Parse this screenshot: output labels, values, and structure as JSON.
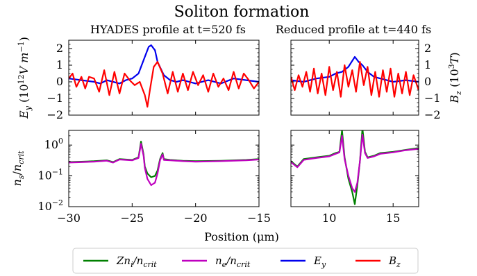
{
  "figure": {
    "title": "Soliton formation",
    "xlabel": "Position (μm)"
  },
  "colors": {
    "Zn_i": "#008000",
    "n_e": "#bf00bf",
    "E_y": "#0000ee",
    "B_z": "#ff0000"
  },
  "chart_data": [
    {
      "id": "top-left",
      "type": "line",
      "title": "HYADES profile at t=520 fs",
      "ylabel": "E_y (10^12 V m^-1)",
      "xlim": [
        -30,
        -15
      ],
      "ylim": [
        -2,
        2.5
      ],
      "yticks": [
        -2,
        -1,
        0,
        1,
        2
      ],
      "series": [
        {
          "name": "E_y",
          "x": [
            -30,
            -29,
            -28,
            -27.5,
            -27,
            -26.5,
            -26,
            -25.5,
            -25,
            -24.5,
            -24,
            -23.7,
            -23.5,
            -23.2,
            -23,
            -22.5,
            -22,
            -21.5,
            -21,
            -20,
            -19,
            -18,
            -17,
            -16,
            -15
          ],
          "y": [
            0.2,
            0.1,
            0.0,
            -0.1,
            0.1,
            0.0,
            -0.1,
            0.1,
            0.2,
            0.5,
            1.5,
            2.1,
            2.2,
            1.9,
            1.2,
            0.4,
            0.1,
            0.0,
            0.1,
            -0.1,
            0.1,
            -0.1,
            0.2,
            0.1,
            0.0
          ]
        },
        {
          "name": "B_z",
          "x": [
            -30,
            -29.7,
            -29.4,
            -29,
            -28.7,
            -28.4,
            -28,
            -27.6,
            -27.2,
            -26.8,
            -26.4,
            -26,
            -25.6,
            -25.2,
            -24.8,
            -24.4,
            -24,
            -23.8,
            -23.6,
            -23.3,
            -23,
            -22.6,
            -22.2,
            -21.8,
            -21.4,
            -21,
            -20.6,
            -20.2,
            -19.8,
            -19.4,
            -19,
            -18.6,
            -18.2,
            -17.8,
            -17.4,
            -17,
            -16.6,
            -16.2,
            -15.8,
            -15.4,
            -15
          ],
          "y": [
            0.2,
            0.5,
            -0.3,
            0.3,
            -0.4,
            0.3,
            0.2,
            -0.6,
            0.7,
            -0.8,
            0.6,
            -0.7,
            0.5,
            0.1,
            -0.2,
            0.0,
            -0.8,
            -1.5,
            -0.5,
            0.9,
            1.2,
            0.5,
            -0.7,
            0.6,
            -0.6,
            0.5,
            -0.5,
            0.6,
            -0.2,
            0.4,
            -0.6,
            0.5,
            -0.3,
            0.2,
            -0.5,
            0.6,
            -0.4,
            0.5,
            0.1,
            -0.4,
            0.0
          ]
        }
      ]
    },
    {
      "id": "top-right",
      "type": "line",
      "title": "Reduced profile at t=440 fs",
      "ylabel": "B_z (10^3 T)",
      "xlim": [
        7,
        17
      ],
      "ylim": [
        -2,
        2.5
      ],
      "yticks": [
        -2,
        -1,
        0,
        1,
        2
      ],
      "series": [
        {
          "name": "E_y",
          "x": [
            7,
            8,
            9,
            10,
            10.5,
            11,
            11.5,
            12,
            12.3,
            12.6,
            13,
            13.5,
            14,
            14.5,
            15,
            16,
            17
          ],
          "y": [
            0.1,
            0.0,
            0.2,
            0.3,
            0.5,
            0.6,
            0.9,
            1.5,
            1.2,
            1.0,
            0.6,
            0.3,
            0.2,
            0.1,
            0.0,
            0.1,
            0.0
          ]
        },
        {
          "name": "B_z",
          "x": [
            7,
            7.3,
            7.6,
            7.9,
            8.2,
            8.5,
            8.8,
            9.1,
            9.4,
            9.7,
            10,
            10.3,
            10.6,
            10.9,
            11.2,
            11.5,
            11.8,
            12.1,
            12.4,
            12.7,
            13,
            13.3,
            13.6,
            13.9,
            14.2,
            14.5,
            14.8,
            15.1,
            15.4,
            15.7,
            16,
            16.3,
            16.6,
            17
          ],
          "y": [
            0.3,
            -0.5,
            0.4,
            -0.3,
            0.6,
            -0.6,
            0.8,
            -0.7,
            0.5,
            -0.8,
            0.9,
            -0.5,
            0.6,
            -0.9,
            1.0,
            -0.3,
            0.7,
            -0.6,
            1.2,
            -0.2,
            0.9,
            -0.8,
            0.6,
            -0.9,
            0.7,
            -0.6,
            0.8,
            -0.9,
            0.5,
            -0.7,
            0.6,
            -0.8,
            0.4,
            -0.5
          ]
        }
      ]
    },
    {
      "id": "bottom-left",
      "type": "line",
      "ylabel": "n_s/n_crit",
      "yscale": "log",
      "xlim": [
        -30,
        -15
      ],
      "ylim": [
        0.01,
        3
      ],
      "xticks": [
        -30,
        -25,
        -20,
        -15
      ],
      "series": [
        {
          "name": "Zn_i/n_crit",
          "x": [
            -30,
            -28,
            -27,
            -26.5,
            -26,
            -25,
            -24.5,
            -24.3,
            -24.1,
            -24,
            -23.8,
            -23.5,
            -23.2,
            -23,
            -22.8,
            -22.6,
            -22.5,
            -22,
            -21,
            -20,
            -18,
            -16,
            -15
          ],
          "y": [
            0.28,
            0.3,
            0.32,
            0.28,
            0.35,
            0.33,
            0.4,
            1.3,
            0.5,
            0.2,
            0.12,
            0.09,
            0.1,
            0.15,
            0.35,
            0.55,
            0.35,
            0.33,
            0.31,
            0.3,
            0.31,
            0.33,
            0.35
          ]
        },
        {
          "name": "n_e/n_crit",
          "x": [
            -30,
            -28,
            -27,
            -26.5,
            -26,
            -25,
            -24.5,
            -24.3,
            -24.1,
            -24,
            -23.8,
            -23.5,
            -23.2,
            -23,
            -22.8,
            -22.6,
            -22.5,
            -22,
            -21,
            -20,
            -18,
            -16,
            -15
          ],
          "y": [
            0.27,
            0.29,
            0.31,
            0.27,
            0.34,
            0.32,
            0.38,
            1.1,
            0.45,
            0.18,
            0.08,
            0.05,
            0.06,
            0.12,
            0.32,
            0.5,
            0.33,
            0.32,
            0.3,
            0.29,
            0.3,
            0.32,
            0.34
          ]
        }
      ]
    },
    {
      "id": "bottom-right",
      "type": "line",
      "yscale": "log",
      "xlim": [
        7,
        17
      ],
      "ylim": [
        0.01,
        3
      ],
      "xticks": [
        10,
        15
      ],
      "series": [
        {
          "name": "Zn_i/n_crit",
          "x": [
            7,
            7.5,
            8,
            9,
            10,
            10.5,
            10.8,
            11,
            11.2,
            11.5,
            11.8,
            12,
            12.2,
            12.4,
            12.6,
            12.8,
            13,
            13.5,
            14,
            15,
            16,
            17
          ],
          "y": [
            0.3,
            0.2,
            0.35,
            0.4,
            0.45,
            0.55,
            0.6,
            3.0,
            0.4,
            0.08,
            0.03,
            0.012,
            0.05,
            0.3,
            3.5,
            0.6,
            0.4,
            0.45,
            0.55,
            0.6,
            0.7,
            0.8
          ]
        },
        {
          "name": "n_e/n_crit",
          "x": [
            7,
            7.5,
            8,
            9,
            10,
            10.5,
            10.8,
            11,
            11.2,
            11.5,
            11.8,
            12,
            12.2,
            12.4,
            12.6,
            12.8,
            13,
            13.5,
            14,
            15,
            16,
            17
          ],
          "y": [
            0.28,
            0.19,
            0.33,
            0.38,
            0.43,
            0.52,
            0.58,
            2.0,
            0.35,
            0.1,
            0.04,
            0.03,
            0.06,
            0.3,
            2.2,
            0.55,
            0.38,
            0.43,
            0.52,
            0.58,
            0.68,
            0.75
          ]
        }
      ]
    }
  ],
  "legend": [
    {
      "label": "Zn_i/n_crit",
      "color_key": "Zn_i"
    },
    {
      "label": "n_e/n_crit",
      "color_key": "n_e"
    },
    {
      "label": "E_y",
      "color_key": "E_y"
    },
    {
      "label": "B_z",
      "color_key": "B_z"
    }
  ]
}
